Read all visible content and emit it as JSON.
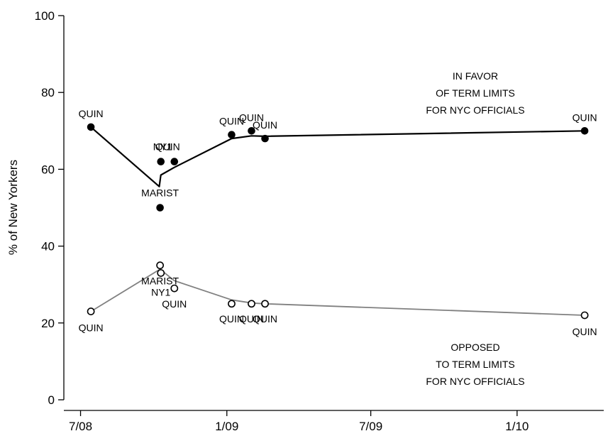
{
  "chart_data": {
    "type": "scatter",
    "title": "",
    "ylabel": "% of New Yorkers",
    "xlabel": "",
    "ylim": [
      0,
      100
    ],
    "yticks": [
      0,
      20,
      40,
      60,
      80,
      100
    ],
    "xlim": [
      "2008-06-10",
      "2010-04-20"
    ],
    "xticks": [
      {
        "date": "2008-07-01",
        "label": "7/08"
      },
      {
        "date": "2009-01-01",
        "label": "1/09"
      },
      {
        "date": "2009-07-01",
        "label": "7/09"
      },
      {
        "date": "2010-01-01",
        "label": "1/10"
      }
    ],
    "grid": false,
    "legend": "none",
    "series": [
      {
        "name": "IN FAVOR OF TERM LIMITS FOR NYC OFFICIALS",
        "color": "#000000",
        "marker": "filled-circle",
        "points": [
          {
            "x": "2008-07-14",
            "y": 71,
            "poll": "QUIN"
          },
          {
            "x": "2008-10-09",
            "y": 50,
            "poll": "MARIST"
          },
          {
            "x": "2008-10-10",
            "y": 62,
            "poll": "NY1"
          },
          {
            "x": "2008-10-27",
            "y": 62,
            "poll": "QUIN"
          },
          {
            "x": "2009-01-07",
            "y": 69,
            "poll": "QUIN"
          },
          {
            "x": "2009-02-01",
            "y": 70,
            "poll": "QUIN"
          },
          {
            "x": "2009-02-18",
            "y": 68,
            "poll": "QUIN"
          },
          {
            "x": "2010-03-27",
            "y": 70,
            "poll": "QUIN"
          }
        ],
        "trend": [
          {
            "x": "2008-07-14",
            "y": 71
          },
          {
            "x": "2008-10-08",
            "y": 55.5
          },
          {
            "x": "2008-10-10",
            "y": 58.5
          },
          {
            "x": "2008-10-27",
            "y": 60.5
          },
          {
            "x": "2009-01-07",
            "y": 68
          },
          {
            "x": "2009-02-01",
            "y": 68.7
          },
          {
            "x": "2009-02-18",
            "y": 68.6
          },
          {
            "x": "2010-03-27",
            "y": 70
          }
        ]
      },
      {
        "name": "OPPOSED TO TERM LIMITS FOR NYC OFFICIALS",
        "color": "#808080",
        "marker": "hollow-circle",
        "points": [
          {
            "x": "2008-07-14",
            "y": 23,
            "poll": "QUIN"
          },
          {
            "x": "2008-10-09",
            "y": 35,
            "poll": "MARIST"
          },
          {
            "x": "2008-10-10",
            "y": 33,
            "poll": "NY1"
          },
          {
            "x": "2008-10-27",
            "y": 29,
            "poll": "QUIN"
          },
          {
            "x": "2009-01-07",
            "y": 25,
            "poll": "QUIN"
          },
          {
            "x": "2009-02-01",
            "y": 25,
            "poll": "QUIN"
          },
          {
            "x": "2009-02-18",
            "y": 25,
            "poll": "QUIN"
          },
          {
            "x": "2010-03-27",
            "y": 22,
            "poll": "QUIN"
          }
        ],
        "trend": [
          {
            "x": "2008-07-14",
            "y": 23
          },
          {
            "x": "2008-10-09",
            "y": 34
          },
          {
            "x": "2008-10-27",
            "y": 31
          },
          {
            "x": "2009-01-07",
            "y": 26
          },
          {
            "x": "2009-02-01",
            "y": 25.2
          },
          {
            "x": "2009-02-18",
            "y": 25
          },
          {
            "x": "2010-03-27",
            "y": 22
          }
        ]
      }
    ],
    "annotations": [
      {
        "lines": [
          "IN FAVOR",
          "OF TERM LIMITS",
          "FOR NYC OFFICIALS"
        ]
      },
      {
        "lines": [
          "OPPOSED",
          "TO TERM LIMITS",
          "FOR NYC OFFICIALS"
        ]
      }
    ]
  }
}
